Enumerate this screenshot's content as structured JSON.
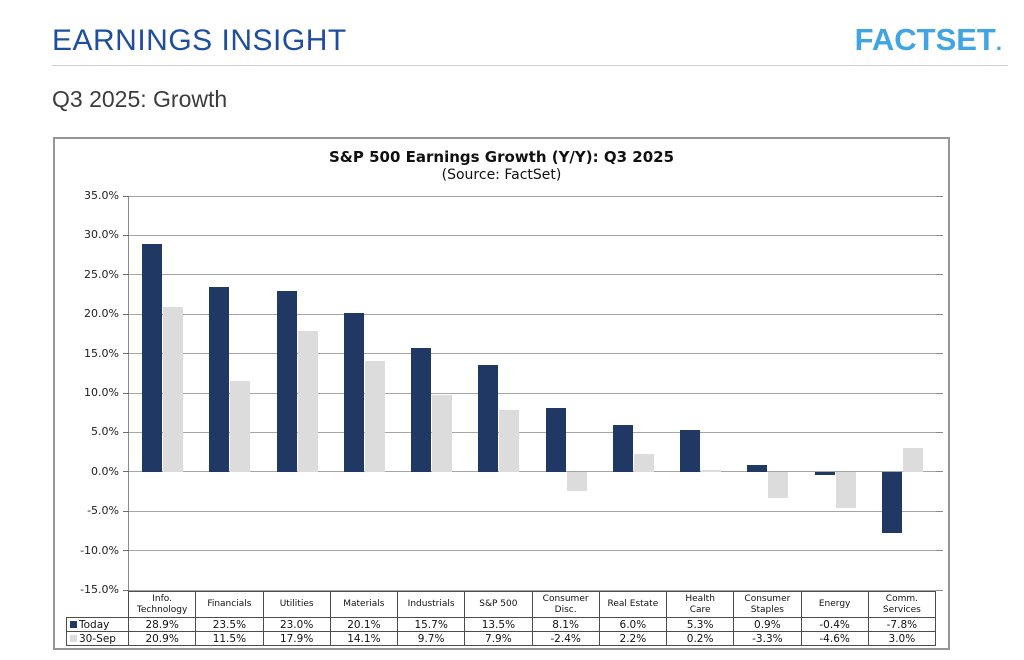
{
  "header": {
    "title": "EARNINGS INSIGHT",
    "logo_text": "FACTSET",
    "logo_dot": ".",
    "title_color": "#1F4E9E",
    "logo_color": "#41A5E1"
  },
  "section": {
    "title": "Q3 2025: Growth"
  },
  "chart_data": {
    "type": "bar",
    "title": "S&P 500 Earnings Growth (Y/Y): Q3 2025",
    "subtitle": "(Source: FactSet)",
    "categories": [
      "Info.\nTechnology",
      "Financials",
      "Utilities",
      "Materials",
      "Industrials",
      "S&P 500",
      "Consumer\nDisc.",
      "Real Estate",
      "Health\nCare",
      "Consumer\nStaples",
      "Energy",
      "Comm.\nServices"
    ],
    "series": [
      {
        "name": "Today",
        "color": "#1F3864",
        "values": [
          28.9,
          23.5,
          23.0,
          20.1,
          15.7,
          13.5,
          8.1,
          6.0,
          5.3,
          0.9,
          -0.4,
          -7.8
        ]
      },
      {
        "name": "30-Sep",
        "color": "#DCDCDC",
        "values": [
          20.9,
          11.5,
          17.9,
          14.1,
          9.7,
          7.9,
          -2.4,
          2.2,
          0.2,
          -3.3,
          -4.6,
          3.0
        ]
      }
    ],
    "ylim": [
      -15,
      35
    ],
    "ytick_step": 5,
    "value_suffix": "%",
    "grid": true,
    "legend_position": "table-left",
    "gridline_color": "#A6A6A6"
  }
}
